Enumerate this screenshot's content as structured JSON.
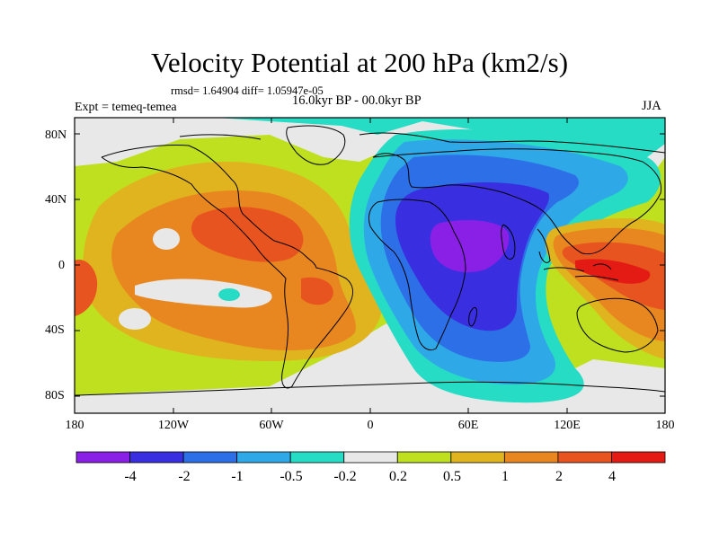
{
  "map": {
    "title": "Velocity Potential at 200 hPa (km2/s)",
    "stats": "rmsd= 1.64904  diff= 1.05947e-05",
    "experiment": "Expt = temeq-temea",
    "period": "16.0kyr BP - 00.0kyr BP",
    "season": "JJA",
    "lat_labels": [
      "80N",
      "40N",
      "0",
      "40S",
      "80S"
    ],
    "lon_labels": [
      "180",
      "120W",
      "60W",
      "0",
      "60E",
      "120E",
      "180"
    ]
  },
  "colorbar": {
    "labels": [
      "-4",
      "-2",
      "-1",
      "-0.5",
      "-0.2",
      "0.2",
      "0.5",
      "1",
      "2",
      "4"
    ],
    "colors": [
      "#8a1fe6",
      "#3a2fe0",
      "#2d6fe6",
      "#2fa8e8",
      "#27dcc4",
      "#e8e8e8",
      "#bfe01f",
      "#e0b41f",
      "#e8861f",
      "#e8541f",
      "#e41a14"
    ]
  },
  "colors": {
    "background_field": "#bfe01f",
    "coastline": "#000000"
  }
}
